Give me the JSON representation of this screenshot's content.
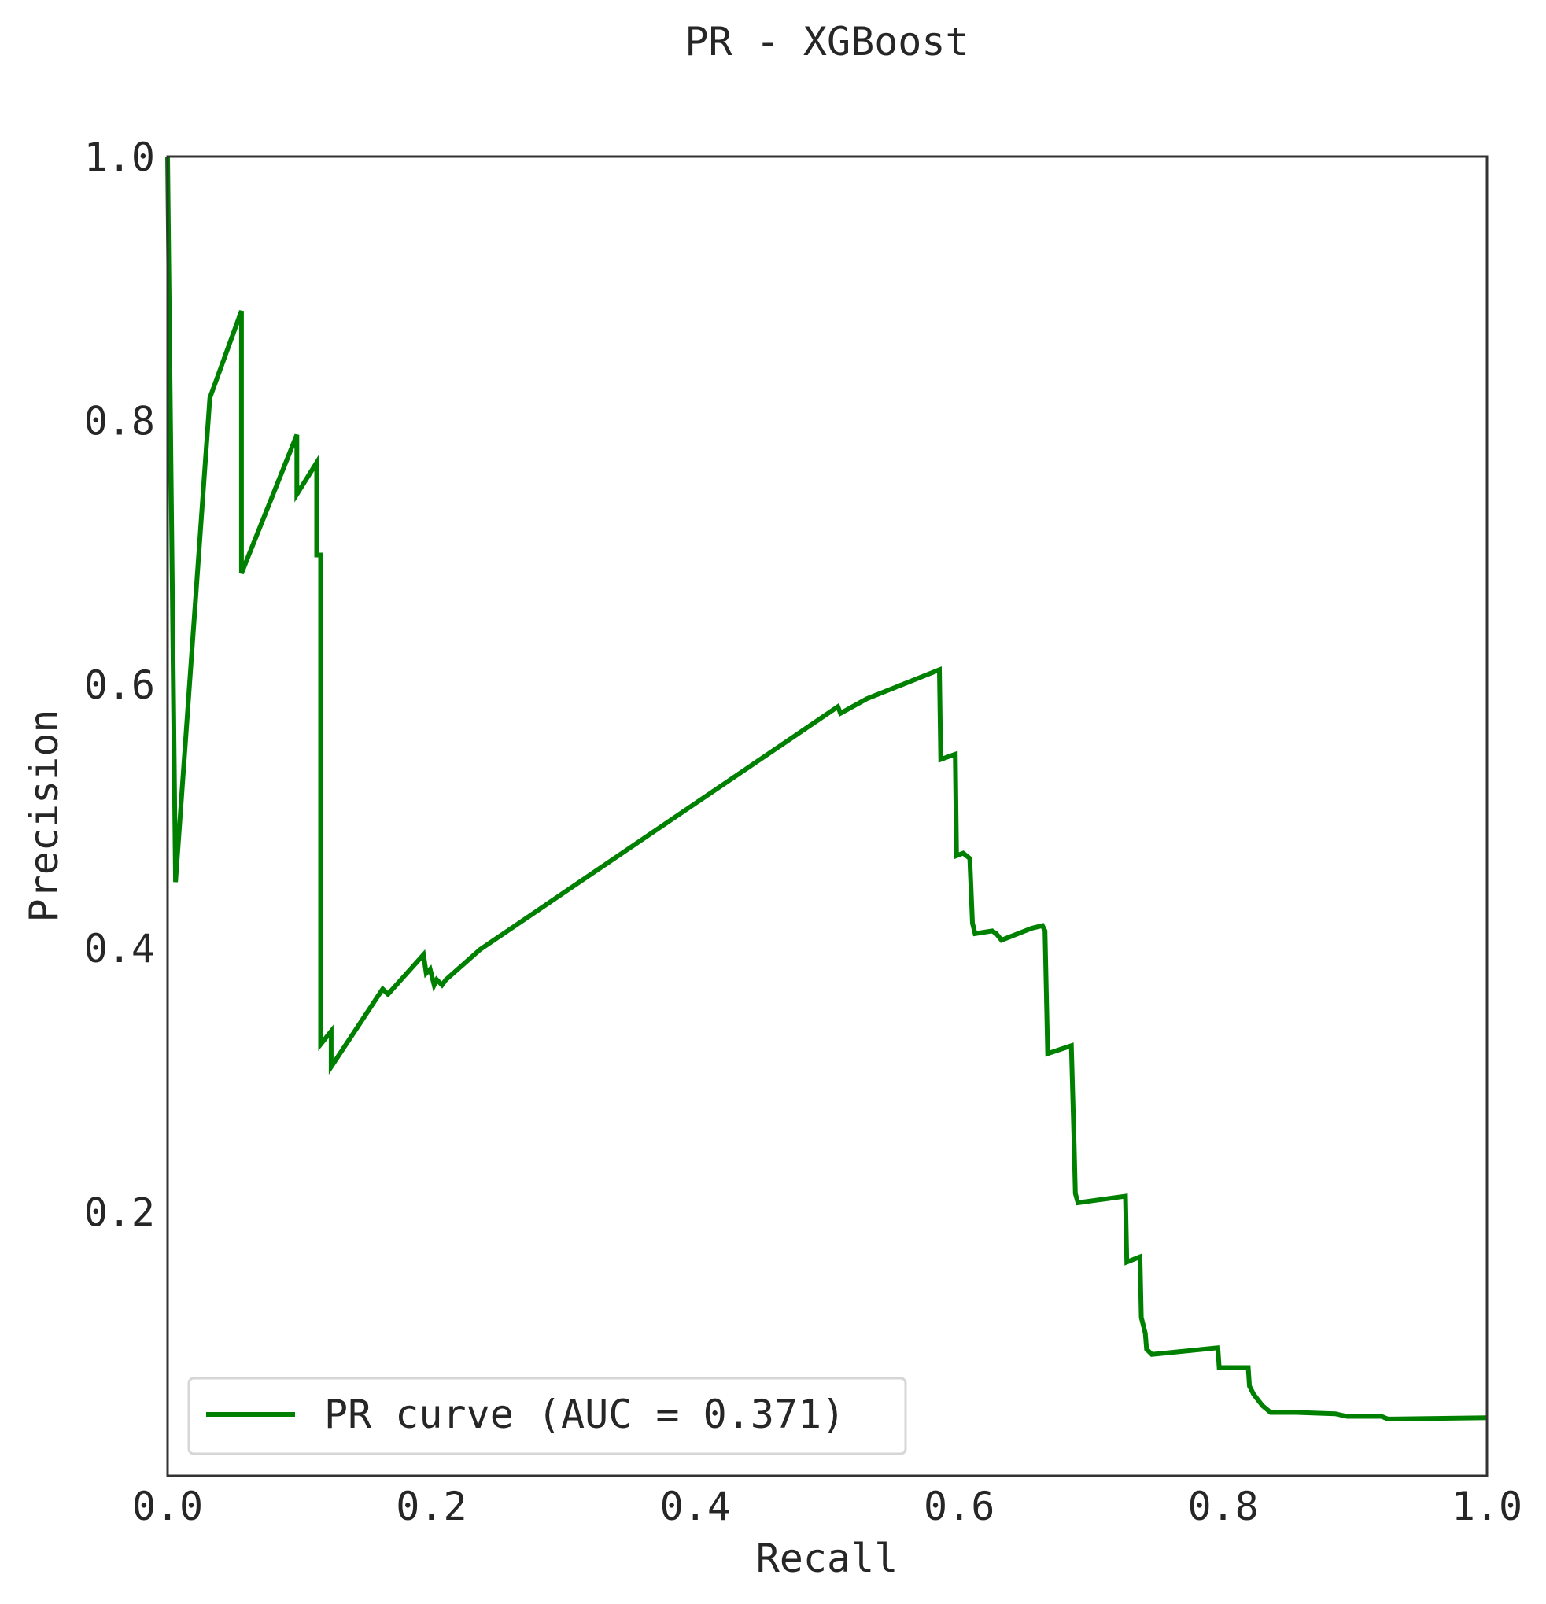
{
  "chart_data": {
    "type": "line",
    "title": "PR - XGBoost",
    "xlabel": "Recall",
    "ylabel": "Precision",
    "xlim": [
      0.0,
      1.0
    ],
    "ylim": [
      0.0,
      1.0
    ],
    "x_ticks": [
      "0.0",
      "0.2",
      "0.4",
      "0.6",
      "0.8",
      "1.0"
    ],
    "y_ticks": [
      "0.2",
      "0.4",
      "0.6",
      "0.8",
      "1.0"
    ],
    "grid": false,
    "legend_position": "lower-left",
    "colors": {
      "curve": "#008000",
      "axes": "#333333",
      "text": "#262626"
    },
    "series": [
      {
        "name": "PR curve (AUC = 0.371)",
        "x": [
          0.0,
          0.006,
          0.032,
          0.056,
          0.056,
          0.098,
          0.098,
          0.113,
          0.113,
          0.116,
          0.116,
          0.124,
          0.124,
          0.163,
          0.167,
          0.194,
          0.196,
          0.199,
          0.202,
          0.204,
          0.208,
          0.211,
          0.237,
          0.508,
          0.51,
          0.53,
          0.585,
          0.586,
          0.597,
          0.598,
          0.603,
          0.608,
          0.61,
          0.612,
          0.625,
          0.628,
          0.632,
          0.655,
          0.663,
          0.665,
          0.667,
          0.685,
          0.687,
          0.688,
          0.69,
          0.726,
          0.727,
          0.737,
          0.738,
          0.741,
          0.742,
          0.746,
          0.796,
          0.797,
          0.819,
          0.82,
          0.823,
          0.826,
          0.83,
          0.836,
          0.856,
          0.885,
          0.894,
          0.92,
          0.925,
          1.0
        ],
        "y": [
          1.0,
          0.45,
          0.817,
          0.883,
          0.684,
          0.789,
          0.744,
          0.768,
          0.698,
          0.698,
          0.327,
          0.337,
          0.31,
          0.369,
          0.365,
          0.395,
          0.381,
          0.384,
          0.372,
          0.376,
          0.372,
          0.376,
          0.399,
          0.583,
          0.578,
          0.589,
          0.611,
          0.543,
          0.547,
          0.47,
          0.472,
          0.468,
          0.419,
          0.411,
          0.413,
          0.411,
          0.406,
          0.415,
          0.417,
          0.413,
          0.32,
          0.326,
          0.254,
          0.214,
          0.207,
          0.212,
          0.162,
          0.166,
          0.12,
          0.108,
          0.096,
          0.092,
          0.097,
          0.082,
          0.082,
          0.068,
          0.062,
          0.058,
          0.053,
          0.048,
          0.048,
          0.047,
          0.045,
          0.045,
          0.043,
          0.044
        ]
      }
    ]
  }
}
